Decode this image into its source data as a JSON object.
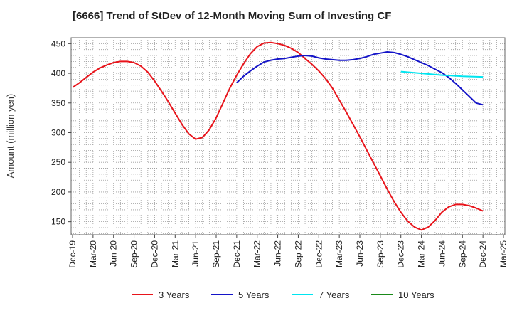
{
  "chart_data": {
    "type": "line",
    "title": "[6666]  Trend of StDev of 12-Month Moving Sum of Investing CF",
    "xlabel": "",
    "ylabel": "Amount (million yen)",
    "ylim": [
      128,
      460
    ],
    "yticks": [
      150,
      200,
      250,
      300,
      350,
      400,
      450
    ],
    "xticks": [
      "Dec-19",
      "Mar-20",
      "Jun-20",
      "Sep-20",
      "Dec-20",
      "Mar-21",
      "Jun-21",
      "Sep-21",
      "Dec-21",
      "Mar-22",
      "Jun-22",
      "Sep-22",
      "Dec-22",
      "Mar-23",
      "Jun-23",
      "Sep-23",
      "Dec-23",
      "Mar-24",
      "Jun-24",
      "Sep-24",
      "Dec-24",
      "Mar-25"
    ],
    "grid": true,
    "legend_position": "bottom",
    "series": [
      {
        "name": "3 Years",
        "color": "#e8141b",
        "points": [
          [
            "Dec-19",
            376
          ],
          [
            "Jan-20",
            384
          ],
          [
            "Feb-20",
            393
          ],
          [
            "Mar-20",
            402
          ],
          [
            "Apr-20",
            409
          ],
          [
            "May-20",
            414
          ],
          [
            "Jun-20",
            418
          ],
          [
            "Jul-20",
            420
          ],
          [
            "Aug-20",
            420
          ],
          [
            "Sep-20",
            418
          ],
          [
            "Oct-20",
            412
          ],
          [
            "Nov-20",
            402
          ],
          [
            "Dec-20",
            387
          ],
          [
            "Jan-21",
            370
          ],
          [
            "Feb-21",
            352
          ],
          [
            "Mar-21",
            333
          ],
          [
            "Apr-21",
            314
          ],
          [
            "May-21",
            298
          ],
          [
            "Jun-21",
            289
          ],
          [
            "Jul-21",
            292
          ],
          [
            "Aug-21",
            305
          ],
          [
            "Sep-21",
            325
          ],
          [
            "Oct-21",
            350
          ],
          [
            "Nov-21",
            375
          ],
          [
            "Dec-21",
            397
          ],
          [
            "Jan-22",
            416
          ],
          [
            "Feb-22",
            433
          ],
          [
            "Mar-22",
            445
          ],
          [
            "Apr-22",
            451
          ],
          [
            "May-22",
            452
          ],
          [
            "Jun-22",
            450
          ],
          [
            "Jul-22",
            447
          ],
          [
            "Aug-22",
            442
          ],
          [
            "Sep-22",
            435
          ],
          [
            "Oct-22",
            425
          ],
          [
            "Nov-22",
            415
          ],
          [
            "Dec-22",
            404
          ],
          [
            "Jan-23",
            391
          ],
          [
            "Feb-23",
            375
          ],
          [
            "Mar-23",
            355
          ],
          [
            "Apr-23",
            335
          ],
          [
            "May-23",
            314
          ],
          [
            "Jun-23",
            293
          ],
          [
            "Jul-23",
            271
          ],
          [
            "Aug-23",
            249
          ],
          [
            "Sep-23",
            227
          ],
          [
            "Oct-23",
            205
          ],
          [
            "Nov-23",
            184
          ],
          [
            "Dec-23",
            166
          ],
          [
            "Jan-24",
            151
          ],
          [
            "Feb-24",
            141
          ],
          [
            "Mar-24",
            136
          ],
          [
            "Apr-24",
            141
          ],
          [
            "May-24",
            152
          ],
          [
            "Jun-24",
            166
          ],
          [
            "Jul-24",
            175
          ],
          [
            "Aug-24",
            179
          ],
          [
            "Sep-24",
            179
          ],
          [
            "Oct-24",
            177
          ],
          [
            "Nov-24",
            173
          ],
          [
            "Dec-24",
            168
          ]
        ]
      },
      {
        "name": "5 Years",
        "color": "#1414c8",
        "points": [
          [
            "Dec-21",
            384
          ],
          [
            "Jan-22",
            395
          ],
          [
            "Feb-22",
            404
          ],
          [
            "Mar-22",
            412
          ],
          [
            "Apr-22",
            419
          ],
          [
            "May-22",
            422
          ],
          [
            "Jun-22",
            424
          ],
          [
            "Jul-22",
            425
          ],
          [
            "Aug-22",
            427
          ],
          [
            "Sep-22",
            429
          ],
          [
            "Oct-22",
            430
          ],
          [
            "Nov-22",
            429
          ],
          [
            "Dec-22",
            426
          ],
          [
            "Jan-23",
            424
          ],
          [
            "Feb-23",
            423
          ],
          [
            "Mar-23",
            422
          ],
          [
            "Apr-23",
            422
          ],
          [
            "May-23",
            423
          ],
          [
            "Jun-23",
            425
          ],
          [
            "Jul-23",
            428
          ],
          [
            "Aug-23",
            432
          ],
          [
            "Sep-23",
            434
          ],
          [
            "Oct-23",
            436
          ],
          [
            "Nov-23",
            435
          ],
          [
            "Dec-23",
            432
          ],
          [
            "Jan-24",
            428
          ],
          [
            "Feb-24",
            423
          ],
          [
            "Mar-24",
            418
          ],
          [
            "Apr-24",
            413
          ],
          [
            "May-24",
            407
          ],
          [
            "Jun-24",
            401
          ],
          [
            "Jul-24",
            393
          ],
          [
            "Aug-24",
            383
          ],
          [
            "Sep-24",
            372
          ],
          [
            "Oct-24",
            361
          ],
          [
            "Nov-24",
            350
          ],
          [
            "Dec-24",
            347
          ]
        ]
      },
      {
        "name": "7 Years",
        "color": "#00e5f0",
        "points": [
          [
            "Dec-23",
            403
          ],
          [
            "Mar-24",
            400
          ],
          [
            "Jun-24",
            397
          ],
          [
            "Sep-24",
            395
          ],
          [
            "Dec-24",
            394
          ]
        ]
      },
      {
        "name": "10 Years",
        "color": "#1a8a1a",
        "points": []
      }
    ]
  }
}
